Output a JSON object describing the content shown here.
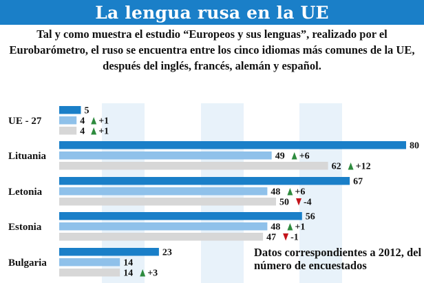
{
  "chart_data": {
    "type": "bar",
    "title": "La lengua rusa en la UE",
    "subtitle": "Tal y como muestra el estudio “Europeos y sus lenguas”, realizado por el Eurobarómetro, el ruso se encuentra entre los cinco idiomas más comunes de la UE, después del inglés, francés, alemán y español.",
    "categories": [
      "UE - 27",
      "Lituania",
      "Letonia",
      "Estonia",
      "Bulgaria"
    ],
    "series": [
      {
        "values": [
          5,
          80,
          67,
          56,
          23
        ],
        "changes": [
          "",
          "",
          "",
          "",
          ""
        ],
        "color": "#1a7fc8"
      },
      {
        "values": [
          4,
          49,
          48,
          48,
          14
        ],
        "changes": [
          "+1",
          "+6",
          "+6",
          "+1",
          ""
        ],
        "color": "#8fc1ea"
      },
      {
        "values": [
          4,
          62,
          50,
          47,
          14
        ],
        "changes": [
          "+1",
          "+12",
          "-4",
          "-1",
          "+3"
        ],
        "color": "#d7d7d7"
      }
    ],
    "xlim": [
      0,
      80
    ],
    "annotation": "Datos correspondientes a 2012, del número de encuestados",
    "colors": {
      "up": "#2e8b3e",
      "down": "#c4141b",
      "background_band": "#e8f2fa",
      "title_bar": "#1a7fc8"
    }
  }
}
